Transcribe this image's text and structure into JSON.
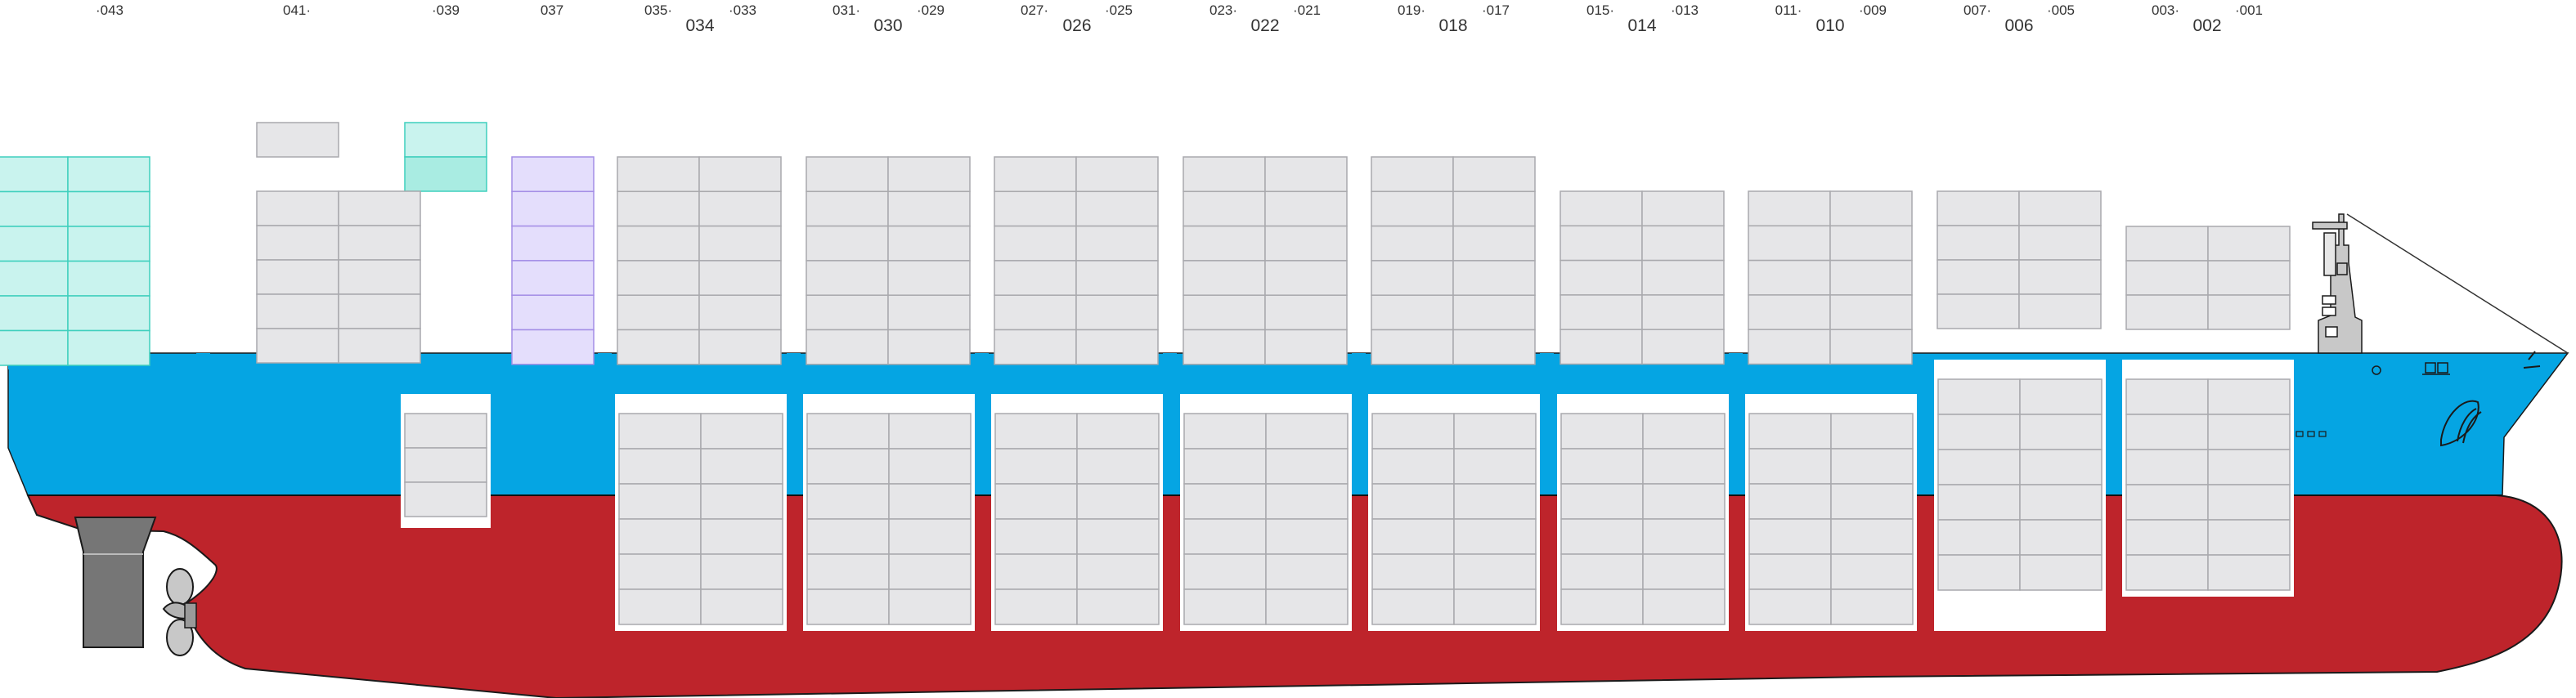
{
  "title": "",
  "bay_labels": {
    "odd": [
      "043",
      "041",
      "039",
      "037",
      "035",
      "033",
      "031",
      "029",
      "027",
      "025",
      "023",
      "021",
      "019",
      "017",
      "015",
      "013",
      "011",
      "009",
      "007",
      "005",
      "003",
      "001"
    ],
    "even": [
      "034",
      "030",
      "026",
      "022",
      "018",
      "014",
      "010",
      "006",
      "002"
    ]
  },
  "colors": {
    "hull_red": "#be242b",
    "hull_blue": "#05a5e3",
    "container_grey": "#e6e6e8",
    "container_border": "#a9a9ad",
    "teal_container": "#c9f3ee",
    "teal_border": "#3fcfbd",
    "lavender_container": "#e4defc",
    "lavender_border": "#a48ee6",
    "rudder": "#767676"
  },
  "icons": [
    "propeller-icon",
    "rudder-icon",
    "bridge-mast-icon",
    "bulbous-bow-icon"
  ]
}
